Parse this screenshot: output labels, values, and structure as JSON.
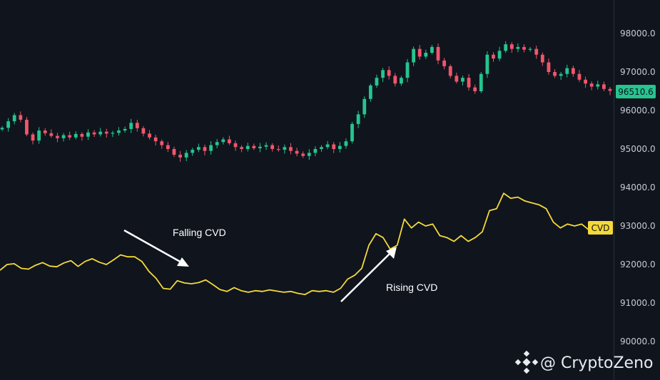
{
  "chart_data": {
    "type": "candlestick",
    "title": "",
    "price_axis": {
      "ticks": [
        "98000.0",
        "97000.0",
        "96000.0",
        "95000.0",
        "94000.0",
        "93000.0",
        "92000.0",
        "91000.0",
        "90000.0"
      ],
      "last_price_label": "96510.6"
    },
    "candle_closes": [
      95550,
      95720,
      95880,
      95760,
      95380,
      95220,
      95480,
      95410,
      95340,
      95280,
      95360,
      95300,
      95390,
      95320,
      95430,
      95380,
      95450,
      95400,
      95420,
      95480,
      95520,
      95680,
      95540,
      95400,
      95300,
      95200,
      95100,
      95000,
      94850,
      94780,
      94900,
      94980,
      95050,
      94950,
      95100,
      95180,
      95250,
      95150,
      95050,
      95000,
      95080,
      95020,
      95060,
      95100,
      95000,
      94980,
      95050,
      94950,
      94880,
      94820,
      94900,
      95000,
      95050,
      95120,
      95000,
      95080,
      95200,
      95650,
      95900,
      96300,
      96650,
      96850,
      97050,
      96900,
      96700,
      96850,
      97250,
      97600,
      97400,
      97500,
      97650,
      97300,
      97150,
      96900,
      96750,
      96850,
      96600,
      96500,
      96950,
      97450,
      97350,
      97550,
      97720,
      97600,
      97650,
      97580,
      97600,
      97450,
      97250,
      97000,
      96900,
      96950,
      97100,
      96950,
      96800,
      96700,
      96620,
      96680,
      96560,
      96510
    ],
    "series": [
      {
        "name": "CVD",
        "values": [
          91850,
          92000,
          92020,
          91900,
          91880,
          91980,
          92050,
          91960,
          91940,
          92040,
          92100,
          91950,
          92080,
          92150,
          92060,
          92000,
          92120,
          92250,
          92200,
          92200,
          92080,
          91820,
          91640,
          91380,
          91360,
          91580,
          91520,
          91500,
          91530,
          91600,
          91480,
          91350,
          91300,
          91400,
          91320,
          91280,
          91320,
          91300,
          91340,
          91310,
          91280,
          91300,
          91250,
          91220,
          91320,
          91300,
          91320,
          91280,
          91380,
          91620,
          91720,
          91900,
          92500,
          92800,
          92700,
          92400,
          92500,
          93180,
          92950,
          93100,
          93000,
          93050,
          92750,
          92700,
          92600,
          92750,
          92600,
          92700,
          92850,
          93400,
          93450,
          93850,
          93720,
          93750,
          93650,
          93600,
          93550,
          93450,
          93100,
          92950,
          93050,
          93000,
          93050,
          92900,
          92950,
          93100,
          93050
        ]
      }
    ],
    "cvd_badge_label": "CVD",
    "annotations": [
      {
        "text": "Falling CVD",
        "arrow": "down-right"
      },
      {
        "text": "Rising CVD",
        "arrow": "up-right"
      }
    ],
    "watermark": "@ CryptoZeno",
    "grid": false,
    "colors": {
      "background": "#0f141d",
      "up": "#26c48f",
      "down": "#f0566b",
      "cvd_line": "#f5d93a",
      "last_price_badge": "#26c48f",
      "cvd_badge": "#f5d93a",
      "axis_text": "#c7cbd3",
      "annotation": "#ffffff"
    }
  }
}
